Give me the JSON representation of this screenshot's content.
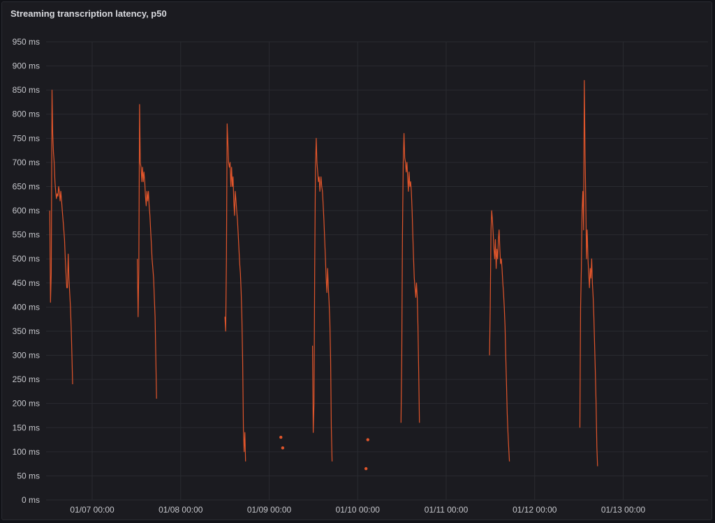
{
  "panel": {
    "title": "Streaming transcription latency, p50"
  },
  "chart_data": {
    "type": "line",
    "title": "Streaming transcription latency, p50",
    "ylabel": "",
    "xlabel": "",
    "ylim": [
      0,
      950
    ],
    "grid": true,
    "series_color": "#e0552b",
    "y_ticks": [
      {
        "value": 0,
        "label": "0 ms"
      },
      {
        "value": 50,
        "label": "50 ms"
      },
      {
        "value": 100,
        "label": "100 ms"
      },
      {
        "value": 150,
        "label": "150 ms"
      },
      {
        "value": 200,
        "label": "200 ms"
      },
      {
        "value": 250,
        "label": "250 ms"
      },
      {
        "value": 300,
        "label": "300 ms"
      },
      {
        "value": 350,
        "label": "350 ms"
      },
      {
        "value": 400,
        "label": "400 ms"
      },
      {
        "value": 450,
        "label": "450 ms"
      },
      {
        "value": 500,
        "label": "500 ms"
      },
      {
        "value": 550,
        "label": "550 ms"
      },
      {
        "value": 600,
        "label": "600 ms"
      },
      {
        "value": 650,
        "label": "650 ms"
      },
      {
        "value": 700,
        "label": "700 ms"
      },
      {
        "value": 750,
        "label": "750 ms"
      },
      {
        "value": 800,
        "label": "800 ms"
      },
      {
        "value": 850,
        "label": "850 ms"
      },
      {
        "value": 900,
        "label": "900 ms"
      },
      {
        "value": 950,
        "label": "950 ms"
      }
    ],
    "x_range": [
      "01/06 11:30",
      "01/13 23:00"
    ],
    "x_ticks": [
      {
        "value": "01/07 00:00",
        "label": "01/07 00:00"
      },
      {
        "value": "01/08 00:00",
        "label": "01/08 00:00"
      },
      {
        "value": "01/09 00:00",
        "label": "01/09 00:00"
      },
      {
        "value": "01/10 00:00",
        "label": "01/10 00:00"
      },
      {
        "value": "01/11 00:00",
        "label": "01/11 00:00"
      },
      {
        "value": "01/12 00:00",
        "label": "01/12 00:00"
      },
      {
        "value": "01/13 00:00",
        "label": "01/13 00:00"
      }
    ],
    "series": [
      {
        "segments": [
          [
            [
              "01/06 12:30",
              600
            ],
            [
              "01/06 12:42",
              410
            ],
            [
              "01/06 12:54",
              470
            ],
            [
              "01/06 13:06",
              850
            ],
            [
              "01/06 13:18",
              760
            ],
            [
              "01/06 13:30",
              720
            ],
            [
              "01/06 13:42",
              700
            ],
            [
              "01/06 13:54",
              660
            ],
            [
              "01/06 14:06",
              640
            ],
            [
              "01/06 14:18",
              625
            ],
            [
              "01/06 14:30",
              635
            ],
            [
              "01/06 14:42",
              630
            ],
            [
              "01/06 14:54",
              650
            ],
            [
              "01/06 15:06",
              640
            ],
            [
              "01/06 15:18",
              620
            ],
            [
              "01/06 15:30",
              640
            ],
            [
              "01/06 15:42",
              620
            ],
            [
              "01/06 15:54",
              600
            ],
            [
              "01/06 16:06",
              580
            ],
            [
              "01/06 16:18",
              560
            ],
            [
              "01/06 16:30",
              540
            ],
            [
              "01/06 16:42",
              500
            ],
            [
              "01/06 16:54",
              470
            ],
            [
              "01/06 17:06",
              440
            ],
            [
              "01/06 17:18",
              440
            ],
            [
              "01/06 17:30",
              510
            ],
            [
              "01/06 17:42",
              460
            ],
            [
              "01/06 17:54",
              430
            ],
            [
              "01/06 18:06",
              400
            ],
            [
              "01/06 18:18",
              360
            ],
            [
              "01/06 18:30",
              300
            ],
            [
              "01/06 18:42",
              240
            ]
          ],
          [
            [
              "01/07 12:15",
              500
            ],
            [
              "01/07 12:27",
              380
            ],
            [
              "01/07 12:39",
              480
            ],
            [
              "01/07 12:51",
              820
            ],
            [
              "01/07 13:03",
              700
            ],
            [
              "01/07 13:15",
              690
            ],
            [
              "01/07 13:27",
              660
            ],
            [
              "01/07 13:39",
              690
            ],
            [
              "01/07 13:51",
              660
            ],
            [
              "01/07 14:03",
              680
            ],
            [
              "01/07 14:15",
              660
            ],
            [
              "01/07 14:27",
              630
            ],
            [
              "01/07 14:39",
              610
            ],
            [
              "01/07 14:51",
              640
            ],
            [
              "01/07 15:03",
              620
            ],
            [
              "01/07 15:15",
              640
            ],
            [
              "01/07 15:27",
              610
            ],
            [
              "01/07 15:39",
              590
            ],
            [
              "01/07 15:51",
              560
            ],
            [
              "01/07 16:03",
              530
            ],
            [
              "01/07 16:15",
              500
            ],
            [
              "01/07 16:27",
              480
            ],
            [
              "01/07 16:39",
              460
            ],
            [
              "01/07 16:51",
              420
            ],
            [
              "01/07 17:03",
              380
            ],
            [
              "01/07 17:15",
              300
            ],
            [
              "01/07 17:27",
              210
            ]
          ],
          [
            [
              "01/08 12:00",
              380
            ],
            [
              "01/08 12:12",
              350
            ],
            [
              "01/08 12:24",
              500
            ],
            [
              "01/08 12:36",
              780
            ],
            [
              "01/08 12:48",
              740
            ],
            [
              "01/08 13:00",
              700
            ],
            [
              "01/08 13:12",
              690
            ],
            [
              "01/08 13:24",
              700
            ],
            [
              "01/08 13:36",
              650
            ],
            [
              "01/08 13:48",
              690
            ],
            [
              "01/08 14:00",
              650
            ],
            [
              "01/08 14:12",
              670
            ],
            [
              "01/08 14:24",
              620
            ],
            [
              "01/08 14:36",
              590
            ],
            [
              "01/08 14:48",
              640
            ],
            [
              "01/08 15:00",
              620
            ],
            [
              "01/08 15:12",
              600
            ],
            [
              "01/08 15:24",
              580
            ],
            [
              "01/08 15:36",
              550
            ],
            [
              "01/08 15:48",
              520
            ],
            [
              "01/08 16:00",
              490
            ],
            [
              "01/08 16:12",
              470
            ],
            [
              "01/08 16:24",
              430
            ],
            [
              "01/08 16:36",
              380
            ],
            [
              "01/08 16:48",
              290
            ],
            [
              "01/08 17:00",
              150
            ],
            [
              "01/08 17:12",
              100
            ],
            [
              "01/08 17:24",
              140
            ],
            [
              "01/08 17:36",
              80
            ]
          ],
          [
            [
              "01/09 11:45",
              320
            ],
            [
              "01/09 11:57",
              140
            ],
            [
              "01/09 12:09",
              200
            ],
            [
              "01/09 12:21",
              480
            ],
            [
              "01/09 12:33",
              690
            ],
            [
              "01/09 12:45",
              750
            ],
            [
              "01/09 12:57",
              700
            ],
            [
              "01/09 13:09",
              680
            ],
            [
              "01/09 13:21",
              660
            ],
            [
              "01/09 13:33",
              670
            ],
            [
              "01/09 13:45",
              640
            ],
            [
              "01/09 14:03",
              670
            ],
            [
              "01/09 14:15",
              650
            ],
            [
              "01/09 14:27",
              640
            ],
            [
              "01/09 14:39",
              610
            ],
            [
              "01/09 14:51",
              580
            ],
            [
              "01/09 15:03",
              540
            ],
            [
              "01/09 15:15",
              500
            ],
            [
              "01/09 15:27",
              460
            ],
            [
              "01/09 15:39",
              430
            ],
            [
              "01/09 15:51",
              480
            ],
            [
              "01/09 16:03",
              440
            ],
            [
              "01/09 16:15",
              410
            ],
            [
              "01/09 16:27",
              370
            ],
            [
              "01/09 16:39",
              290
            ],
            [
              "01/09 16:51",
              150
            ],
            [
              "01/09 17:03",
              80
            ]
          ],
          [
            [
              "01/10 11:45",
              160
            ],
            [
              "01/10 11:57",
              300
            ],
            [
              "01/10 12:09",
              550
            ],
            [
              "01/10 12:21",
              700
            ],
            [
              "01/10 12:33",
              760
            ],
            [
              "01/10 12:45",
              710
            ],
            [
              "01/10 12:57",
              700
            ],
            [
              "01/10 13:09",
              680
            ],
            [
              "01/10 13:21",
              700
            ],
            [
              "01/10 13:33",
              670
            ],
            [
              "01/10 13:45",
              640
            ],
            [
              "01/10 13:57",
              680
            ],
            [
              "01/10 14:09",
              650
            ],
            [
              "01/10 14:21",
              660
            ],
            [
              "01/10 14:33",
              640
            ],
            [
              "01/10 14:45",
              600
            ],
            [
              "01/10 14:57",
              550
            ],
            [
              "01/10 15:09",
              500
            ],
            [
              "01/10 15:21",
              460
            ],
            [
              "01/10 15:33",
              440
            ],
            [
              "01/10 15:45",
              420
            ],
            [
              "01/10 15:57",
              450
            ],
            [
              "01/10 16:09",
              420
            ],
            [
              "01/10 16:21",
              360
            ],
            [
              "01/10 16:33",
              260
            ],
            [
              "01/10 16:45",
              160
            ]
          ],
          [
            [
              "01/11 11:45",
              300
            ],
            [
              "01/11 11:57",
              400
            ],
            [
              "01/11 12:09",
              560
            ],
            [
              "01/11 12:21",
              600
            ],
            [
              "01/11 12:33",
              580
            ],
            [
              "01/11 12:45",
              550
            ],
            [
              "01/11 12:57",
              520
            ],
            [
              "01/11 13:09",
              500
            ],
            [
              "01/11 13:21",
              540
            ],
            [
              "01/11 13:33",
              480
            ],
            [
              "01/11 13:45",
              520
            ],
            [
              "01/11 13:57",
              500
            ],
            [
              "01/11 14:09",
              540
            ],
            [
              "01/11 14:21",
              560
            ],
            [
              "01/11 14:33",
              520
            ],
            [
              "01/11 14:45",
              490
            ],
            [
              "01/11 14:57",
              500
            ],
            [
              "01/11 15:09",
              480
            ],
            [
              "01/11 15:21",
              450
            ],
            [
              "01/11 15:33",
              430
            ],
            [
              "01/11 15:45",
              400
            ],
            [
              "01/11 15:57",
              360
            ],
            [
              "01/11 16:09",
              300
            ],
            [
              "01/11 16:21",
              240
            ],
            [
              "01/11 16:33",
              180
            ],
            [
              "01/11 16:45",
              140
            ],
            [
              "01/11 16:57",
              110
            ],
            [
              "01/11 17:09",
              80
            ]
          ],
          [
            [
              "01/12 12:15",
              150
            ],
            [
              "01/12 12:27",
              400
            ],
            [
              "01/12 12:39",
              480
            ],
            [
              "01/12 12:51",
              600
            ],
            [
              "01/12 13:03",
              640
            ],
            [
              "01/12 13:15",
              560
            ],
            [
              "01/12 13:27",
              870
            ],
            [
              "01/12 13:39",
              720
            ],
            [
              "01/12 13:51",
              620
            ],
            [
              "01/12 14:03",
              500
            ],
            [
              "01/12 14:15",
              560
            ],
            [
              "01/12 14:27",
              500
            ],
            [
              "01/12 14:39",
              470
            ],
            [
              "01/12 14:51",
              440
            ],
            [
              "01/12 15:03",
              480
            ],
            [
              "01/12 15:15",
              460
            ],
            [
              "01/12 15:27",
              500
            ],
            [
              "01/12 15:39",
              450
            ],
            [
              "01/12 15:51",
              420
            ],
            [
              "01/12 16:03",
              380
            ],
            [
              "01/12 16:15",
              320
            ],
            [
              "01/12 16:27",
              260
            ],
            [
              "01/12 16:39",
              200
            ],
            [
              "01/12 16:51",
              110
            ],
            [
              "01/12 17:03",
              70
            ]
          ]
        ],
        "points": [
          [
            "01/09 03:10",
            130
          ],
          [
            "01/09 03:40",
            108
          ],
          [
            "01/10 02:45",
            125
          ],
          [
            "01/10 02:15",
            65
          ]
        ]
      }
    ]
  }
}
